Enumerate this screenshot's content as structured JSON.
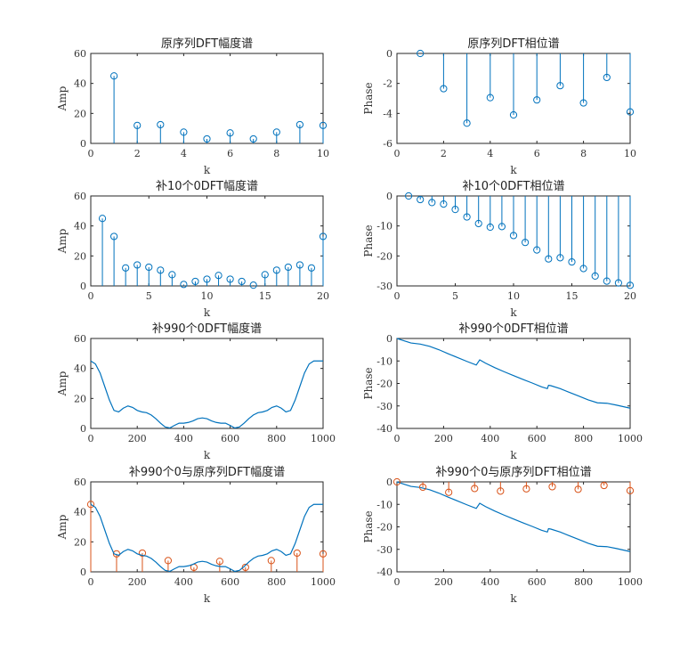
{
  "colors": {
    "blue": "#0072BD",
    "orange": "#D95319",
    "axis": "#262626"
  },
  "chart_data": [
    {
      "type": "stem",
      "title": "原序列DFT幅度谱",
      "xlabel": "k",
      "ylabel": "Amp",
      "xlim": [
        0,
        10
      ],
      "ylim": [
        0,
        60
      ],
      "xticks": [
        "0",
        "2",
        "4",
        "6",
        "8",
        "10"
      ],
      "yticks": [
        "0",
        "20",
        "40",
        "60"
      ],
      "series": [
        {
          "kind": "stem",
          "color": "#0072BD",
          "x": [
            1,
            2,
            3,
            4,
            5,
            6,
            7,
            8,
            9,
            10
          ],
          "y": [
            45,
            12,
            12.5,
            7.5,
            3,
            7,
            3,
            7.5,
            12.5,
            12
          ]
        }
      ]
    },
    {
      "type": "stem",
      "title": "原序列DFT相位谱",
      "xlabel": "k",
      "ylabel": "Phase",
      "xlim": [
        0,
        10
      ],
      "ylim": [
        -6,
        0
      ],
      "xticks": [
        "0",
        "2",
        "4",
        "6",
        "8",
        "10"
      ],
      "yticks": [
        "-6",
        "-4",
        "-2",
        "0"
      ],
      "series": [
        {
          "kind": "stem",
          "color": "#0072BD",
          "x": [
            1,
            2,
            3,
            4,
            5,
            6,
            7,
            8,
            9,
            10
          ],
          "y": [
            0,
            -2.35,
            -4.65,
            -2.95,
            -4.1,
            -3.1,
            -2.15,
            -3.3,
            -1.6,
            -3.9
          ]
        }
      ]
    },
    {
      "type": "stem",
      "title": "补10个0DFT幅度谱",
      "xlabel": "k",
      "ylabel": "Amp",
      "xlim": [
        0,
        20
      ],
      "ylim": [
        0,
        60
      ],
      "xticks": [
        "0",
        "5",
        "10",
        "15",
        "20"
      ],
      "yticks": [
        "0",
        "20",
        "40",
        "60"
      ],
      "series": [
        {
          "kind": "stem",
          "color": "#0072BD",
          "x": [
            1,
            2,
            3,
            4,
            5,
            6,
            7,
            8,
            9,
            10,
            11,
            12,
            13,
            14,
            15,
            16,
            17,
            18,
            19,
            20
          ],
          "y": [
            45,
            33,
            12,
            14,
            12.5,
            10.5,
            7.5,
            1,
            3,
            4.5,
            7,
            4.5,
            3,
            0.5,
            7.5,
            10.5,
            12.5,
            14,
            12,
            33
          ]
        }
      ]
    },
    {
      "type": "stem",
      "title": "补10个0DFT相位谱",
      "xlabel": "k",
      "ylabel": "Phase",
      "xlim": [
        0,
        20
      ],
      "ylim": [
        -30,
        0
      ],
      "xticks": [
        "0",
        "5",
        "10",
        "15",
        "20"
      ],
      "yticks": [
        "-30",
        "-20",
        "-10",
        "0"
      ],
      "series": [
        {
          "kind": "stem",
          "color": "#0072BD",
          "x": [
            1,
            2,
            3,
            4,
            5,
            6,
            7,
            8,
            9,
            10,
            11,
            12,
            13,
            14,
            15,
            16,
            17,
            18,
            19,
            20
          ],
          "y": [
            0,
            -1.2,
            -2.2,
            -2.7,
            -4.5,
            -7,
            -9.2,
            -10.4,
            -10.2,
            -13.2,
            -15.5,
            -18,
            -21,
            -20.6,
            -22,
            -24.2,
            -26.7,
            -28.4,
            -29,
            -29.8
          ]
        }
      ]
    },
    {
      "type": "line",
      "title": "补990个0DFT幅度谱",
      "xlabel": "k",
      "ylabel": "Amp",
      "xlim": [
        0,
        1000
      ],
      "ylim": [
        0,
        60
      ],
      "xticks": [
        "0",
        "200",
        "400",
        "600",
        "800",
        "1000"
      ],
      "yticks": [
        "0",
        "20",
        "40",
        "60"
      ],
      "series": [
        {
          "kind": "line",
          "color": "#0072BD",
          "x": [
            0,
            20,
            40,
            60,
            80,
            100,
            120,
            140,
            160,
            180,
            200,
            220,
            240,
            260,
            280,
            300,
            320,
            340,
            360,
            380,
            400,
            420,
            440,
            460,
            480,
            500,
            520,
            540,
            560,
            580,
            600,
            620,
            640,
            660,
            680,
            700,
            720,
            740,
            760,
            780,
            800,
            820,
            840,
            860,
            880,
            900,
            920,
            940,
            960,
            980,
            1000
          ],
          "y": [
            45,
            43,
            37,
            28,
            19,
            12,
            11,
            13.5,
            15,
            14,
            12,
            11,
            10.5,
            9,
            6.5,
            3.5,
            1,
            0.3,
            2,
            3.5,
            3.5,
            4,
            5,
            6.5,
            7,
            6.5,
            5,
            4,
            3.5,
            3.5,
            2,
            0.3,
            1,
            3.5,
            6.5,
            9,
            10.5,
            11,
            12,
            14,
            15,
            13.5,
            11,
            12,
            19,
            28,
            37,
            43,
            45,
            45,
            45
          ]
        }
      ]
    },
    {
      "type": "line",
      "title": "补990个0DFT相位谱",
      "xlabel": "k",
      "ylabel": "Phase",
      "xlim": [
        0,
        1000
      ],
      "ylim": [
        -40,
        0
      ],
      "xticks": [
        "0",
        "200",
        "400",
        "600",
        "800",
        "1000"
      ],
      "yticks": [
        "-40",
        "-30",
        "-20",
        "-10",
        "0"
      ],
      "series": [
        {
          "kind": "line",
          "color": "#0072BD",
          "x": [
            0,
            30,
            60,
            100,
            140,
            180,
            220,
            260,
            300,
            340,
            355,
            360,
            380,
            420,
            460,
            500,
            540,
            580,
            620,
            645,
            650,
            660,
            700,
            740,
            780,
            820,
            860,
            900,
            940,
            1000
          ],
          "y": [
            0,
            -1,
            -2,
            -2.5,
            -3.5,
            -5,
            -6.8,
            -8.5,
            -10.2,
            -11.8,
            -9.5,
            -9.8,
            -11,
            -13,
            -14.8,
            -16.5,
            -18.2,
            -19.8,
            -21.5,
            -22.3,
            -20.8,
            -21,
            -22.3,
            -24,
            -25.6,
            -27.3,
            -28.6,
            -28.8,
            -29.6,
            -31
          ]
        }
      ]
    },
    {
      "type": "stem+line",
      "title": "补990个0与原序列DFT幅度谱",
      "xlabel": "k",
      "ylabel": "Amp",
      "xlim": [
        0,
        1000
      ],
      "ylim": [
        0,
        60
      ],
      "xticks": [
        "0",
        "200",
        "400",
        "600",
        "800",
        "1000"
      ],
      "yticks": [
        "0",
        "20",
        "40",
        "60"
      ],
      "series": [
        {
          "kind": "stem",
          "color": "#D95319",
          "x": [
            0,
            111,
            222,
            333,
            444,
            555,
            666,
            777,
            888,
            1000
          ],
          "y": [
            45,
            12,
            12.5,
            7.5,
            3,
            7,
            3,
            7.5,
            12.5,
            12
          ]
        },
        {
          "kind": "line",
          "color": "#0072BD",
          "x": [
            0,
            20,
            40,
            60,
            80,
            100,
            120,
            140,
            160,
            180,
            200,
            220,
            240,
            260,
            280,
            300,
            320,
            340,
            360,
            380,
            400,
            420,
            440,
            460,
            480,
            500,
            520,
            540,
            560,
            580,
            600,
            620,
            640,
            660,
            680,
            700,
            720,
            740,
            760,
            780,
            800,
            820,
            840,
            860,
            880,
            900,
            920,
            940,
            960,
            980,
            1000
          ],
          "y": [
            45,
            43,
            37,
            28,
            19,
            12,
            11,
            13.5,
            15,
            14,
            12,
            11,
            10.5,
            9,
            6.5,
            3.5,
            1,
            0.3,
            2,
            3.5,
            3.5,
            4,
            5,
            6.5,
            7,
            6.5,
            5,
            4,
            3.5,
            3.5,
            2,
            0.3,
            1,
            3.5,
            6.5,
            9,
            10.5,
            11,
            12,
            14,
            15,
            13.5,
            11,
            12,
            19,
            28,
            37,
            43,
            45,
            45,
            45
          ]
        }
      ]
    },
    {
      "type": "stem+line",
      "title": "补990个0与原序列DFT相位谱",
      "xlabel": "k",
      "ylabel": "Phase",
      "xlim": [
        0,
        1000
      ],
      "ylim": [
        -40,
        0
      ],
      "xticks": [
        "0",
        "200",
        "400",
        "600",
        "800",
        "1000"
      ],
      "yticks": [
        "-40",
        "-30",
        "-20",
        "-10",
        "0"
      ],
      "series": [
        {
          "kind": "line",
          "color": "#0072BD",
          "x": [
            0,
            30,
            60,
            100,
            140,
            180,
            220,
            260,
            300,
            340,
            355,
            360,
            380,
            420,
            460,
            500,
            540,
            580,
            620,
            645,
            650,
            660,
            700,
            740,
            780,
            820,
            860,
            900,
            940,
            1000
          ],
          "y": [
            0,
            -1,
            -2,
            -2.5,
            -3.5,
            -5,
            -6.8,
            -8.5,
            -10.2,
            -11.8,
            -9.5,
            -9.8,
            -11,
            -13,
            -14.8,
            -16.5,
            -18.2,
            -19.8,
            -21.5,
            -22.3,
            -20.8,
            -21,
            -22.3,
            -24,
            -25.6,
            -27.3,
            -28.6,
            -28.8,
            -29.6,
            -31
          ]
        },
        {
          "kind": "stem",
          "color": "#D95319",
          "x": [
            0,
            111,
            222,
            333,
            444,
            555,
            666,
            777,
            888,
            1000
          ],
          "y": [
            0,
            -2.35,
            -4.65,
            -2.95,
            -4.1,
            -3.1,
            -2.15,
            -3.3,
            -1.6,
            -3.9
          ]
        }
      ]
    }
  ]
}
